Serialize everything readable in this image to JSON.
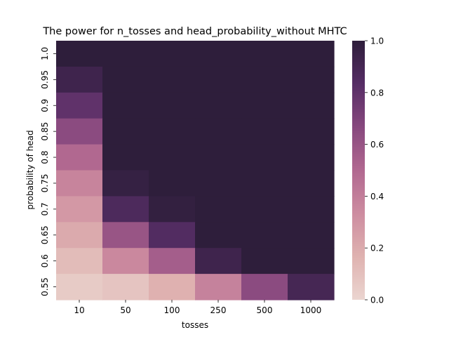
{
  "chart_data": {
    "type": "heatmap",
    "title": "The power for n_tosses and head_probability_without MHTC",
    "xlabel": "tosses",
    "ylabel": "probability of head",
    "x_categories": [
      "10",
      "50",
      "100",
      "250",
      "500",
      "1000"
    ],
    "y_categories": [
      "1.0",
      "0.95",
      "0.9",
      "0.85",
      "0.8",
      "0.75",
      "0.7",
      "0.65",
      "0.6",
      "0.55"
    ],
    "values": [
      [
        1.0,
        1.0,
        1.0,
        1.0,
        1.0,
        1.0
      ],
      [
        0.93,
        1.0,
        1.0,
        1.0,
        1.0,
        1.0
      ],
      [
        0.8,
        1.0,
        1.0,
        1.0,
        1.0,
        1.0
      ],
      [
        0.65,
        1.0,
        1.0,
        1.0,
        1.0,
        1.0
      ],
      [
        0.5,
        1.0,
        1.0,
        1.0,
        1.0,
        1.0
      ],
      [
        0.37,
        0.97,
        1.0,
        1.0,
        1.0,
        1.0
      ],
      [
        0.28,
        0.87,
        0.98,
        1.0,
        1.0,
        1.0
      ],
      [
        0.2,
        0.6,
        0.85,
        1.0,
        1.0,
        1.0
      ],
      [
        0.12,
        0.35,
        0.55,
        0.93,
        1.0,
        1.0
      ],
      [
        0.05,
        0.08,
        0.17,
        0.38,
        0.65,
        0.9
      ]
    ],
    "colorbar": {
      "range": [
        0.0,
        1.0
      ],
      "ticks": [
        "0.0",
        "0.2",
        "0.4",
        "0.6",
        "0.8",
        "1.0"
      ]
    },
    "colormap": [
      "#ebd5d0",
      "#dfb2b0",
      "#cd8ca0",
      "#b16890",
      "#87487e",
      "#562d65",
      "#2e1e3b"
    ]
  }
}
